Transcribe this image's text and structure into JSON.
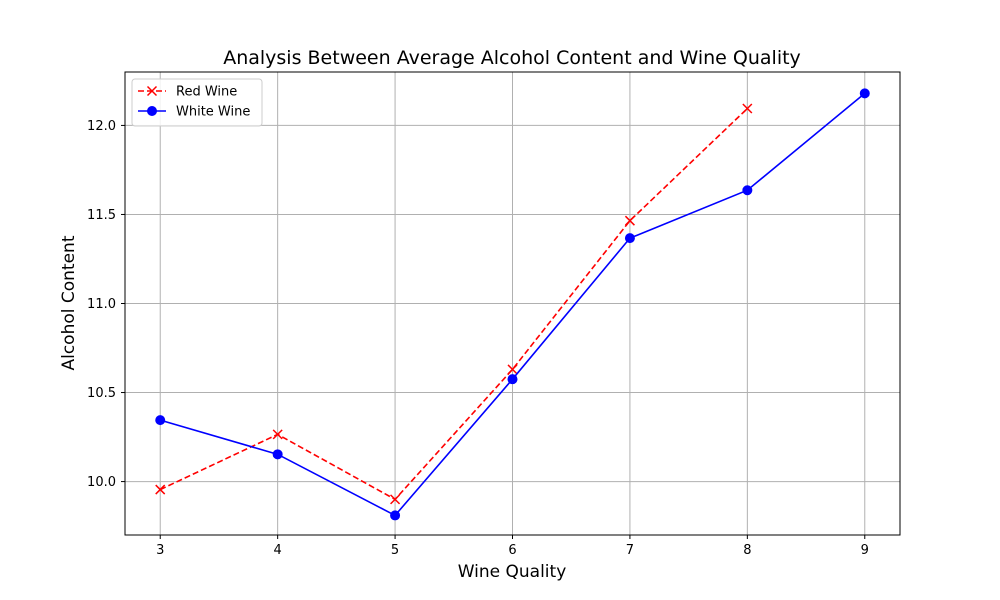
{
  "chart_data": {
    "type": "line",
    "title": "Analysis Between Average Alcohol Content and Wine Quality",
    "xlabel": "Wine Quality",
    "ylabel": "Alcohol Content",
    "xlim": [
      2.7,
      9.3
    ],
    "ylim": [
      9.7,
      12.3
    ],
    "xticks": [
      3,
      4,
      5,
      6,
      7,
      8,
      9
    ],
    "yticks": [
      10.0,
      10.5,
      11.0,
      11.5,
      12.0
    ],
    "ytick_labels": [
      "10.0",
      "10.5",
      "11.0",
      "11.5",
      "12.0"
    ],
    "grid": true,
    "legend_position": "top-left",
    "series": [
      {
        "name": "Red Wine",
        "color": "#ff0000",
        "line_style": "dashed",
        "marker": "x",
        "x": [
          3,
          4,
          5,
          6,
          7,
          8
        ],
        "values": [
          9.955,
          10.265,
          9.9,
          10.63,
          11.465,
          12.095
        ]
      },
      {
        "name": "White Wine",
        "color": "#0000ff",
        "line_style": "solid",
        "marker": "circle",
        "x": [
          3,
          4,
          5,
          6,
          7,
          8,
          9
        ],
        "values": [
          10.345,
          10.153,
          9.81,
          10.575,
          11.367,
          11.636,
          12.18
        ]
      }
    ]
  }
}
